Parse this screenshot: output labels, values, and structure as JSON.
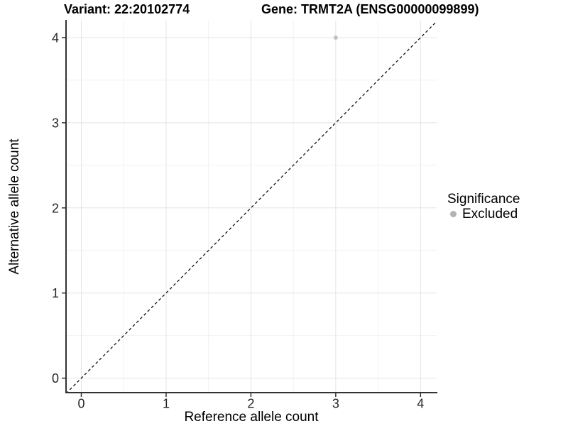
{
  "chart_data": {
    "type": "scatter",
    "title_parts": [
      "Variant: 22:20102774",
      "Gene: TRMT2A (ENSG00000099899)"
    ],
    "xlabel": "Reference allele count",
    "ylabel": "Alternative allele count",
    "x_domain": [
      -0.18,
      4.19
    ],
    "y_domain": [
      -0.17,
      4.2
    ],
    "x_ticks": [
      0,
      1,
      2,
      3,
      4
    ],
    "y_ticks": [
      0,
      1,
      2,
      3,
      4
    ],
    "x_minor_ticks": [
      0.5,
      1.5,
      2.5,
      3.5
    ],
    "y_minor_ticks": [
      0.5,
      1.5,
      2.5,
      3.5
    ],
    "grid": "major+minor",
    "legend_position": "right",
    "series": [
      {
        "name": "Excluded",
        "color": "#c2c2c2",
        "marker": "circle",
        "points": [
          {
            "x": 3,
            "y": 4
          }
        ]
      }
    ],
    "reference_line": {
      "slope": 1,
      "intercept": 0,
      "style": "dashed",
      "color": "#111111"
    },
    "colors": {
      "background": "#ffffff",
      "grid_major": "#e4e4e4",
      "grid_minor": "#f2f2f2",
      "axis_line": "#333333",
      "tick_text": "#262626"
    }
  },
  "legend": {
    "title": "Significance",
    "items": [
      {
        "label": "Excluded",
        "color": "#b3b3b3",
        "marker": "circle"
      }
    ]
  }
}
